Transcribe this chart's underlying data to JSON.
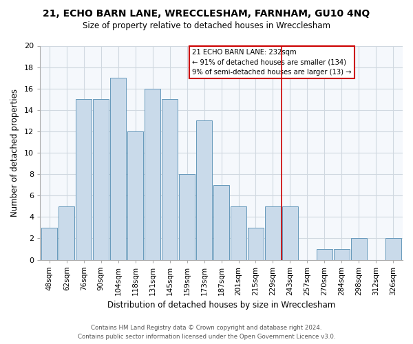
{
  "title": "21, ECHO BARN LANE, WRECCLESHAM, FARNHAM, GU10 4NQ",
  "subtitle": "Size of property relative to detached houses in Wrecclesham",
  "xlabel": "Distribution of detached houses by size in Wrecclesham",
  "ylabel": "Number of detached properties",
  "footer_line1": "Contains HM Land Registry data © Crown copyright and database right 2024.",
  "footer_line2": "Contains public sector information licensed under the Open Government Licence v3.0.",
  "bar_labels": [
    "48sqm",
    "62sqm",
    "76sqm",
    "90sqm",
    "104sqm",
    "118sqm",
    "131sqm",
    "145sqm",
    "159sqm",
    "173sqm",
    "187sqm",
    "201sqm",
    "215sqm",
    "229sqm",
    "243sqm",
    "257sqm",
    "270sqm",
    "284sqm",
    "298sqm",
    "312sqm",
    "326sqm"
  ],
  "bar_values": [
    3,
    5,
    15,
    15,
    17,
    12,
    16,
    15,
    8,
    13,
    7,
    5,
    3,
    5,
    5,
    0,
    1,
    1,
    2,
    0,
    2
  ],
  "bar_color": "#c9daea",
  "bar_edge_color": "#6699bb",
  "background_color": "#ffffff",
  "plot_bg_color": "#f5f8fc",
  "grid_color": "#d0d8e0",
  "vline_x_index": 13,
  "vline_color": "#cc0000",
  "annotation_title": "21 ECHO BARN LANE: 232sqm",
  "annotation_line1": "← 91% of detached houses are smaller (134)",
  "annotation_line2": "9% of semi-detached houses are larger (13) →",
  "annotation_box_color": "#ffffff",
  "annotation_border_color": "#cc0000",
  "ylim": [
    0,
    20
  ],
  "yticks": [
    0,
    2,
    4,
    6,
    8,
    10,
    12,
    14,
    16,
    18,
    20
  ]
}
